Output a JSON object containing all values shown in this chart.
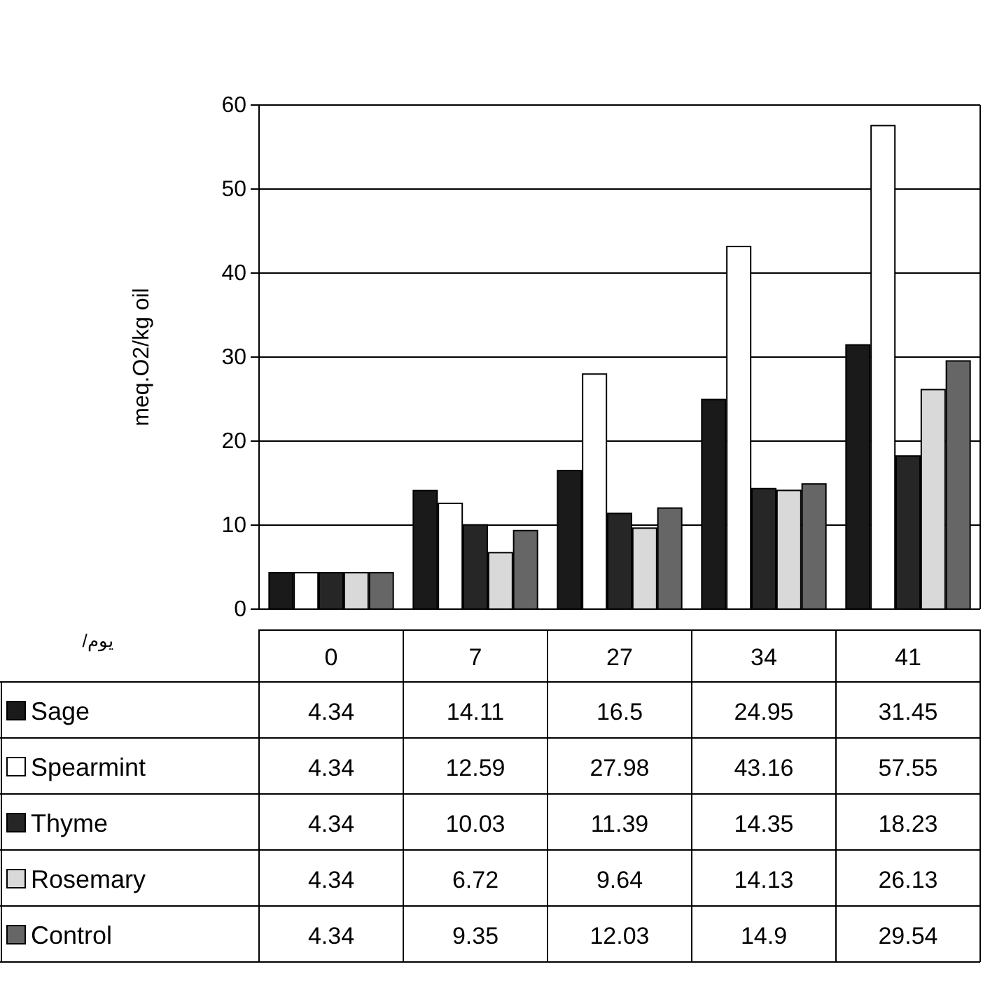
{
  "chart_data": {
    "type": "bar",
    "ylabel": "meq.O2/kg oil",
    "annotations": [
      "/يوم"
    ],
    "categories": [
      "0",
      "7",
      "27",
      "34",
      "41"
    ],
    "series": [
      {
        "name": "Sage",
        "color": "#1a1a1a",
        "values": [
          4.34,
          14.11,
          16.5,
          24.95,
          31.45
        ]
      },
      {
        "name": "Spearmint",
        "color": "#ffffff",
        "values": [
          4.34,
          12.59,
          27.98,
          43.16,
          57.55
        ]
      },
      {
        "name": "Thyme",
        "color": "#262626",
        "values": [
          4.34,
          10.03,
          11.39,
          14.35,
          18.23
        ]
      },
      {
        "name": "Rosemary",
        "color": "#d9d9d9",
        "values": [
          4.34,
          6.72,
          9.64,
          14.13,
          26.13
        ]
      },
      {
        "name": "Control",
        "color": "#666666",
        "values": [
          4.34,
          9.35,
          12.03,
          14.9,
          29.54
        ]
      }
    ],
    "ylim": [
      0,
      60
    ],
    "yticks": [
      0,
      10,
      20,
      30,
      40,
      50,
      60
    ],
    "grid": "y",
    "data_labels": true,
    "legend": "bottom"
  }
}
